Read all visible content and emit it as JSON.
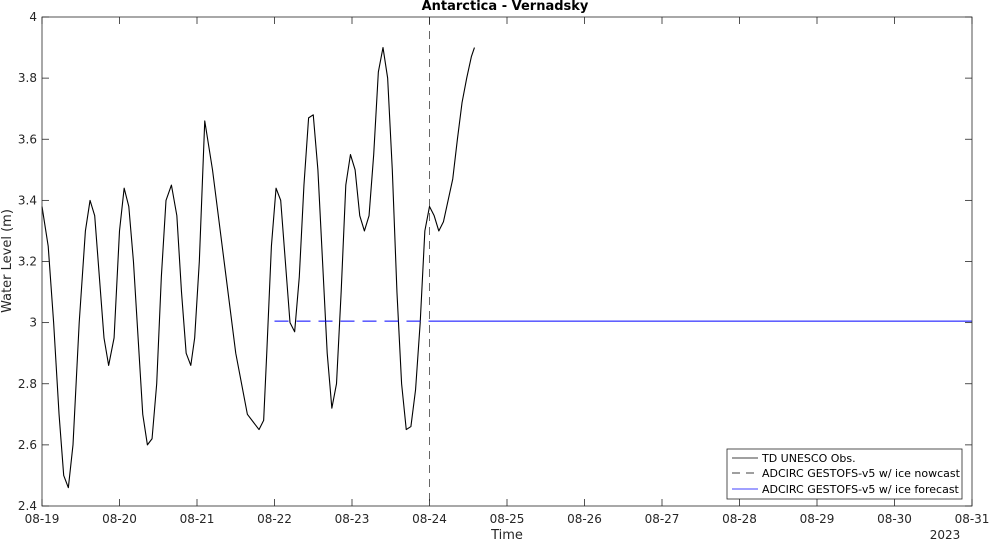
{
  "chart_data": {
    "type": "line",
    "title": "Antarctica - Vernadsky",
    "xlabel": "Time",
    "ylabel": "Water Level (m)",
    "x_year_label": "2023",
    "xlim": [
      0,
      12
    ],
    "ylim": [
      2.4,
      4.0
    ],
    "x_tick_values": [
      0,
      1,
      2,
      3,
      4,
      5,
      6,
      7,
      8,
      9,
      10,
      11,
      12
    ],
    "x_tick_labels": [
      "08-19",
      "08-20",
      "08-21",
      "08-22",
      "08-23",
      "08-24",
      "08-25",
      "08-26",
      "08-27",
      "08-28",
      "08-29",
      "08-30",
      "08-31"
    ],
    "y_tick_values": [
      2.4,
      2.6,
      2.8,
      3.0,
      3.2,
      3.4,
      3.6,
      3.8,
      4.0
    ],
    "y_tick_labels": [
      "2.4",
      "2.6",
      "2.8",
      "3",
      "3.2",
      "3.4",
      "3.6",
      "3.8",
      "4"
    ],
    "grid": false,
    "legend_position": "bottom-right",
    "nowcast_boundary_x": 5.0,
    "series": [
      {
        "name": "TD UNESCO Obs.",
        "color": "#000000",
        "style": "solid",
        "x": [
          0.0,
          0.08,
          0.15,
          0.22,
          0.28,
          0.34,
          0.4,
          0.48,
          0.56,
          0.62,
          0.68,
          0.74,
          0.8,
          0.86,
          0.93,
          1.0,
          1.06,
          1.12,
          1.18,
          1.24,
          1.3,
          1.36,
          1.42,
          1.48,
          1.54,
          1.6,
          1.67,
          1.74,
          1.8,
          1.86,
          1.92,
          1.97,
          2.03,
          2.1,
          2.2,
          2.35,
          2.5,
          2.65,
          2.8,
          2.86,
          2.9,
          2.96,
          3.02,
          3.08,
          3.14,
          3.2,
          3.26,
          3.32,
          3.38,
          3.44,
          3.5,
          3.56,
          3.62,
          3.68,
          3.74,
          3.8,
          3.86,
          3.92,
          3.98,
          4.04,
          4.1,
          4.16,
          4.22,
          4.28,
          4.34,
          4.4,
          4.46,
          4.52,
          4.58,
          4.64,
          4.7,
          4.76,
          4.82,
          4.88,
          4.94,
          5.0,
          5.06,
          5.12,
          5.18,
          5.24,
          5.3,
          5.36,
          5.42,
          5.48,
          5.54,
          5.58
        ],
        "values": [
          3.38,
          3.25,
          3.0,
          2.7,
          2.5,
          2.46,
          2.6,
          3.0,
          3.3,
          3.4,
          3.35,
          3.15,
          2.95,
          2.86,
          2.95,
          3.3,
          3.44,
          3.38,
          3.2,
          2.95,
          2.7,
          2.6,
          2.62,
          2.8,
          3.15,
          3.4,
          3.45,
          3.35,
          3.1,
          2.9,
          2.86,
          2.95,
          3.2,
          3.66,
          3.5,
          3.2,
          2.9,
          2.7,
          2.65,
          2.68,
          2.9,
          3.25,
          3.44,
          3.4,
          3.2,
          3.0,
          2.97,
          3.15,
          3.45,
          3.67,
          3.68,
          3.5,
          3.2,
          2.9,
          2.72,
          2.8,
          3.1,
          3.45,
          3.55,
          3.5,
          3.35,
          3.3,
          3.35,
          3.55,
          3.82,
          3.9,
          3.8,
          3.5,
          3.1,
          2.8,
          2.65,
          2.66,
          2.78,
          3.0,
          3.3,
          3.38,
          3.35,
          3.3,
          3.33,
          3.4,
          3.47,
          3.6,
          3.72,
          3.8,
          3.87,
          3.9
        ]
      },
      {
        "name": "ADCIRC GESTOFS-v5 w/ ice nowcast",
        "color": "#0000ff",
        "style": "dashed",
        "x": [
          3.0,
          5.0
        ],
        "values": [
          3.005,
          3.005
        ]
      },
      {
        "name": "ADCIRC GESTOFS-v5 w/ ice forecast",
        "color": "#0000ff",
        "style": "solid",
        "x": [
          5.0,
          12.0
        ],
        "values": [
          3.005,
          3.005
        ]
      }
    ]
  }
}
